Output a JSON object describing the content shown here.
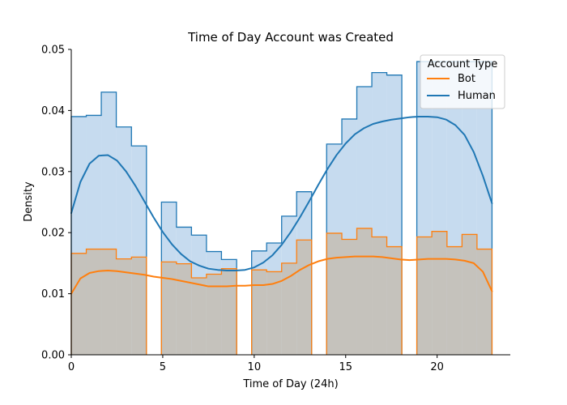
{
  "chart_data": {
    "type": "histogram",
    "title": "Time of Day Account was Created",
    "xlabel": "Time of Day (24h)",
    "ylabel": "Density",
    "xlim": [
      0,
      24
    ],
    "ylim": [
      0,
      0.05
    ],
    "xticks": [
      0,
      5,
      10,
      15,
      20
    ],
    "yticks": [
      0.0,
      0.01,
      0.02,
      0.03,
      0.04,
      0.05
    ],
    "ytick_labels": [
      "0.00",
      "0.01",
      "0.02",
      "0.03",
      "0.04",
      "0.05"
    ],
    "grid": false,
    "legend": {
      "title": "Account Type",
      "position": "top-right"
    },
    "bin_edges": [
      0,
      0.82,
      1.64,
      2.46,
      3.29,
      4.11,
      4.93,
      5.75,
      6.57,
      7.39,
      8.21,
      9.04,
      9.86,
      10.68,
      11.5,
      12.32,
      13.14,
      13.96,
      14.79,
      15.61,
      16.43,
      17.25,
      18.07,
      18.89,
      19.71,
      20.54,
      21.36,
      22.18,
      23
    ],
    "series": [
      {
        "name": "Human",
        "color": "#1f77b4",
        "fill_color": "#c6dbef",
        "hist": [
          0.039,
          0.0392,
          0.043,
          0.0373,
          0.0342,
          0,
          0.025,
          0.0209,
          0.0196,
          0.0169,
          0.0156,
          0,
          0.017,
          0.0183,
          0.0227,
          0.0267,
          0,
          0.0345,
          0.0386,
          0.0439,
          0.0462,
          0.0458,
          0,
          0.048,
          0.048,
          0.048,
          0.048,
          0.048
        ],
        "kde_x": [
          0,
          0.5,
          1,
          1.5,
          2,
          2.5,
          3,
          3.5,
          4,
          4.5,
          5,
          5.5,
          6,
          6.5,
          7,
          7.5,
          8,
          8.5,
          9,
          9.5,
          10,
          10.5,
          11,
          11.5,
          12,
          12.5,
          13,
          13.5,
          14,
          14.5,
          15,
          15.5,
          16,
          16.5,
          17,
          17.5,
          18,
          18.5,
          19,
          19.5,
          20,
          20.5,
          21,
          21.5,
          22,
          22.5,
          23
        ],
        "kde_y": [
          0.0232,
          0.0283,
          0.0313,
          0.0326,
          0.0327,
          0.0318,
          0.03,
          0.0277,
          0.0251,
          0.0225,
          0.0201,
          0.0181,
          0.0165,
          0.0153,
          0.0146,
          0.0141,
          0.0139,
          0.0138,
          0.0138,
          0.0139,
          0.0143,
          0.0151,
          0.0163,
          0.018,
          0.0201,
          0.0225,
          0.0251,
          0.0278,
          0.0304,
          0.0327,
          0.0346,
          0.0361,
          0.0371,
          0.0378,
          0.0382,
          0.0385,
          0.0387,
          0.0389,
          0.039,
          0.039,
          0.0389,
          0.0385,
          0.0376,
          0.036,
          0.0332,
          0.0293,
          0.0248
        ]
      },
      {
        "name": "Bot",
        "color": "#ff7f0e",
        "fill_color": "#c5c2bc",
        "hist": [
          0.0166,
          0.0173,
          0.0173,
          0.0157,
          0.016,
          0,
          0.0152,
          0.0149,
          0.0126,
          0.0132,
          0.0141,
          0,
          0.0139,
          0.0136,
          0.015,
          0.0188,
          0,
          0.0199,
          0.0189,
          0.0207,
          0.0193,
          0.0177,
          0,
          0.0193,
          0.0202,
          0.0177,
          0.0197,
          0.0173
        ],
        "kde_x": [
          0,
          0.5,
          1,
          1.5,
          2,
          2.5,
          3,
          3.5,
          4,
          4.5,
          5,
          5.5,
          6,
          6.5,
          7,
          7.5,
          8,
          8.5,
          9,
          9.5,
          10,
          10.5,
          11,
          11.5,
          12,
          12.5,
          13,
          13.5,
          14,
          14.5,
          15,
          15.5,
          16,
          16.5,
          17,
          17.5,
          18,
          18.5,
          19,
          19.5,
          20,
          20.5,
          21,
          21.5,
          22,
          22.5,
          23
        ],
        "kde_y": [
          0.01,
          0.0125,
          0.0134,
          0.0137,
          0.0138,
          0.0137,
          0.0135,
          0.0133,
          0.0131,
          0.0128,
          0.0126,
          0.0124,
          0.0121,
          0.0118,
          0.0115,
          0.0112,
          0.0112,
          0.0112,
          0.0113,
          0.0113,
          0.0114,
          0.0114,
          0.0116,
          0.0121,
          0.0129,
          0.0139,
          0.0147,
          0.0153,
          0.0157,
          0.0159,
          0.016,
          0.0161,
          0.0161,
          0.0161,
          0.016,
          0.0158,
          0.0156,
          0.0155,
          0.0156,
          0.0157,
          0.0157,
          0.0157,
          0.0156,
          0.0154,
          0.015,
          0.0136,
          0.0104
        ]
      }
    ]
  }
}
